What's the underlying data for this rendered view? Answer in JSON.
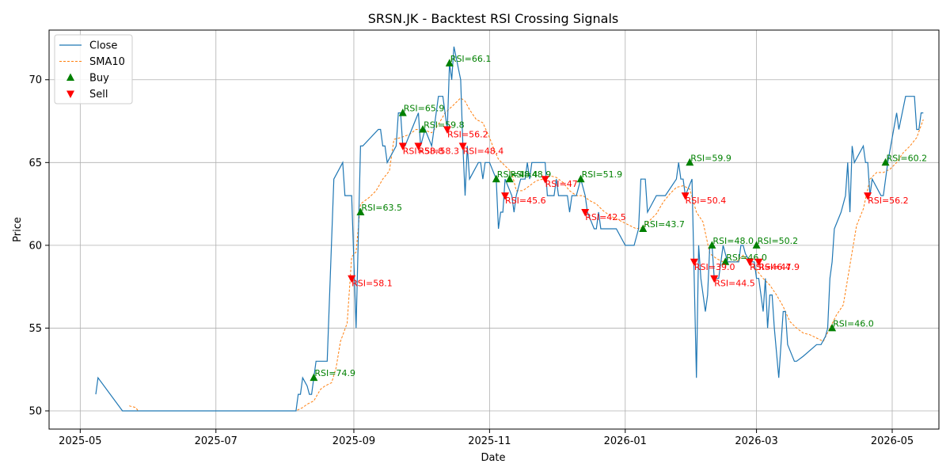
{
  "chart_data": {
    "type": "line",
    "title": "SRSN.JK - Backtest RSI Crossing Signals",
    "xlabel": "Date",
    "ylabel": "Price",
    "x_ticks": [
      "2025-05",
      "2025-07",
      "2025-09",
      "2025-11",
      "2026-01",
      "2026-03",
      "2026-05"
    ],
    "y_ticks": [
      50,
      55,
      60,
      65,
      70
    ],
    "xlim": [
      "2025-04-17",
      "2026-05-22"
    ],
    "ylim": [
      48.9,
      73.0
    ],
    "grid": true,
    "legend_position": "top-left",
    "legend": [
      {
        "label": "Close",
        "style": "line",
        "color": "#1f77b4"
      },
      {
        "label": "SMA10",
        "style": "dashed",
        "color": "#ff7f0e"
      },
      {
        "label": "Buy",
        "style": "triangle-up",
        "color": "#008000"
      },
      {
        "label": "Sell",
        "style": "triangle-down",
        "color": "#ff0000"
      }
    ],
    "close": [
      [
        "2025-05-08",
        51
      ],
      [
        "2025-05-09",
        52
      ],
      [
        "2025-05-20",
        50
      ],
      [
        "2025-08-06",
        50
      ],
      [
        "2025-08-07",
        51
      ],
      [
        "2025-08-08",
        51
      ],
      [
        "2025-08-09",
        52
      ],
      [
        "2025-08-11",
        51.5
      ],
      [
        "2025-08-12",
        51
      ],
      [
        "2025-08-13",
        51
      ],
      [
        "2025-08-14",
        52
      ],
      [
        "2025-08-15",
        53
      ],
      [
        "2025-08-20",
        53
      ],
      [
        "2025-08-23",
        64
      ],
      [
        "2025-08-27",
        65
      ],
      [
        "2025-08-28",
        63
      ],
      [
        "2025-08-31",
        63
      ],
      [
        "2025-09-02",
        55
      ],
      [
        "2025-09-04",
        66
      ],
      [
        "2025-09-05",
        66
      ],
      [
        "2025-09-12",
        67
      ],
      [
        "2025-09-13",
        67
      ],
      [
        "2025-09-14",
        66
      ],
      [
        "2025-09-15",
        66
      ],
      [
        "2025-09-16",
        65
      ],
      [
        "2025-09-20",
        66
      ],
      [
        "2025-09-21",
        68
      ],
      [
        "2025-09-22",
        68
      ],
      [
        "2025-09-23",
        66
      ],
      [
        "2025-09-24",
        66
      ],
      [
        "2025-09-30",
        68
      ],
      [
        "2025-10-01",
        66
      ],
      [
        "2025-10-03",
        67
      ],
      [
        "2025-10-06",
        66
      ],
      [
        "2025-10-09",
        69
      ],
      [
        "2025-10-11",
        69
      ],
      [
        "2025-10-13",
        67
      ],
      [
        "2025-10-14",
        71
      ],
      [
        "2025-10-15",
        70
      ],
      [
        "2025-10-16",
        72
      ],
      [
        "2025-10-19",
        70
      ],
      [
        "2025-10-20",
        66
      ],
      [
        "2025-10-21",
        63
      ],
      [
        "2025-10-22",
        66
      ],
      [
        "2025-10-23",
        64
      ],
      [
        "2025-10-27",
        65
      ],
      [
        "2025-10-28",
        65
      ],
      [
        "2025-10-29",
        64
      ],
      [
        "2025-10-30",
        65
      ],
      [
        "2025-11-01",
        65
      ],
      [
        "2025-11-04",
        64
      ],
      [
        "2025-11-05",
        61
      ],
      [
        "2025-11-06",
        62
      ],
      [
        "2025-11-07",
        62
      ],
      [
        "2025-11-08",
        64
      ],
      [
        "2025-11-11",
        63
      ],
      [
        "2025-11-12",
        62
      ],
      [
        "2025-11-13",
        63
      ],
      [
        "2025-11-15",
        64
      ],
      [
        "2025-11-17",
        64
      ],
      [
        "2025-11-18",
        65
      ],
      [
        "2025-11-19",
        64
      ],
      [
        "2025-11-20",
        65
      ],
      [
        "2025-11-26",
        65
      ],
      [
        "2025-11-27",
        63
      ],
      [
        "2025-11-30",
        63
      ],
      [
        "2025-12-01",
        64
      ],
      [
        "2025-12-02",
        63
      ],
      [
        "2025-12-06",
        63
      ],
      [
        "2025-12-07",
        62
      ],
      [
        "2025-12-08",
        63
      ],
      [
        "2025-12-10",
        63
      ],
      [
        "2025-12-12",
        64
      ],
      [
        "2025-12-14",
        63
      ],
      [
        "2025-12-15",
        62
      ],
      [
        "2025-12-18",
        61
      ],
      [
        "2025-12-19",
        61
      ],
      [
        "2025-12-20",
        62
      ],
      [
        "2025-12-21",
        61
      ],
      [
        "2025-12-28",
        61
      ],
      [
        "2026-01-01",
        60
      ],
      [
        "2026-01-05",
        60
      ],
      [
        "2026-01-07",
        61
      ],
      [
        "2026-01-08",
        64
      ],
      [
        "2026-01-10",
        64
      ],
      [
        "2026-01-11",
        62
      ],
      [
        "2026-01-13",
        62.5
      ],
      [
        "2026-01-15",
        63
      ],
      [
        "2026-01-19",
        63
      ],
      [
        "2026-01-24",
        64
      ],
      [
        "2026-01-25",
        65
      ],
      [
        "2026-01-26",
        64
      ],
      [
        "2026-01-27",
        64
      ],
      [
        "2026-01-28",
        63
      ],
      [
        "2026-01-31",
        64
      ],
      [
        "2026-02-02",
        52
      ],
      [
        "2026-02-03",
        60
      ],
      [
        "2026-02-04",
        58
      ],
      [
        "2026-02-06",
        56
      ],
      [
        "2026-02-07",
        57
      ],
      [
        "2026-02-08",
        60
      ],
      [
        "2026-02-09",
        60
      ],
      [
        "2026-02-10",
        58
      ],
      [
        "2026-02-12",
        58
      ],
      [
        "2026-02-14",
        60
      ],
      [
        "2026-02-16",
        59
      ],
      [
        "2026-02-17",
        59
      ],
      [
        "2026-02-21",
        59
      ],
      [
        "2026-02-22",
        60
      ],
      [
        "2026-02-23",
        60
      ],
      [
        "2026-02-24",
        59.5
      ],
      [
        "2026-02-26",
        59
      ],
      [
        "2026-02-28",
        59
      ],
      [
        "2026-03-01",
        58
      ],
      [
        "2026-03-02",
        58
      ],
      [
        "2026-03-04",
        56
      ],
      [
        "2026-03-05",
        58
      ],
      [
        "2026-03-06",
        55
      ],
      [
        "2026-03-07",
        57
      ],
      [
        "2026-03-08",
        57
      ],
      [
        "2026-03-09",
        55
      ],
      [
        "2026-03-11",
        52
      ],
      [
        "2026-03-13",
        56
      ],
      [
        "2026-03-14",
        56
      ],
      [
        "2026-03-15",
        54
      ],
      [
        "2026-03-18",
        53
      ],
      [
        "2026-03-19",
        53
      ],
      [
        "2026-03-22",
        53.3
      ],
      [
        "2026-03-28",
        54
      ],
      [
        "2026-03-30",
        54
      ],
      [
        "2026-04-01",
        54.5
      ],
      [
        "2026-04-02",
        55
      ],
      [
        "2026-04-03",
        58
      ],
      [
        "2026-04-04",
        59
      ],
      [
        "2026-04-05",
        61
      ],
      [
        "2026-04-08",
        62
      ],
      [
        "2026-04-10",
        63
      ],
      [
        "2026-04-11",
        65
      ],
      [
        "2026-04-12",
        62
      ],
      [
        "2026-04-13",
        66
      ],
      [
        "2026-04-14",
        65
      ],
      [
        "2026-04-18",
        66
      ],
      [
        "2026-04-19",
        65
      ],
      [
        "2026-04-20",
        65
      ],
      [
        "2026-04-21",
        63
      ],
      [
        "2026-04-22",
        64
      ],
      [
        "2026-04-26",
        63
      ],
      [
        "2026-04-27",
        63
      ],
      [
        "2026-04-29",
        65
      ],
      [
        "2026-05-01",
        66.5
      ],
      [
        "2026-05-03",
        68
      ],
      [
        "2026-05-04",
        67
      ],
      [
        "2026-05-07",
        69
      ],
      [
        "2026-05-11",
        69
      ],
      [
        "2026-05-12",
        67
      ],
      [
        "2026-05-13",
        67
      ],
      [
        "2026-05-14",
        68
      ],
      [
        "2026-05-15",
        68
      ]
    ],
    "sma10": [
      [
        "2025-05-23",
        50.3
      ],
      [
        "2025-05-26",
        50.2
      ],
      [
        "2025-05-27",
        50
      ],
      [
        "2025-08-06",
        50
      ],
      [
        "2025-08-09",
        50.2
      ],
      [
        "2025-08-11",
        50.4
      ],
      [
        "2025-08-14",
        50.6
      ],
      [
        "2025-08-17",
        51.3
      ],
      [
        "2025-08-19",
        51.5
      ],
      [
        "2025-08-22",
        51.7
      ],
      [
        "2025-08-24",
        52.6
      ],
      [
        "2025-08-26",
        54.2
      ],
      [
        "2025-08-29",
        55.3
      ],
      [
        "2025-08-31",
        59.3
      ],
      [
        "2025-09-02",
        59.6
      ],
      [
        "2025-09-04",
        62.5
      ],
      [
        "2025-09-08",
        62.9
      ],
      [
        "2025-09-11",
        63.3
      ],
      [
        "2025-09-14",
        64
      ],
      [
        "2025-09-17",
        64.5
      ],
      [
        "2025-09-19",
        66.4
      ],
      [
        "2025-09-22",
        66.5
      ],
      [
        "2025-09-26",
        66.7
      ],
      [
        "2025-09-29",
        67
      ],
      [
        "2025-10-02",
        67
      ],
      [
        "2025-10-06",
        66.8
      ],
      [
        "2025-10-09",
        67.3
      ],
      [
        "2025-10-12",
        68
      ],
      [
        "2025-10-16",
        68.5
      ],
      [
        "2025-10-19",
        68.9
      ],
      [
        "2025-10-21",
        68.7
      ],
      [
        "2025-10-23",
        68.2
      ],
      [
        "2025-10-26",
        67.6
      ],
      [
        "2025-10-29",
        67.4
      ],
      [
        "2025-11-01",
        66.5
      ],
      [
        "2025-11-03",
        65.8
      ],
      [
        "2025-11-05",
        65.2
      ],
      [
        "2025-11-08",
        64.8
      ],
      [
        "2025-11-11",
        64.4
      ],
      [
        "2025-11-13",
        63.3
      ],
      [
        "2025-11-16",
        63.3
      ],
      [
        "2025-11-19",
        63.6
      ],
      [
        "2025-11-22",
        63.9
      ],
      [
        "2025-11-25",
        64
      ],
      [
        "2025-11-28",
        64.2
      ],
      [
        "2025-12-01",
        64.1
      ],
      [
        "2025-12-04",
        63.8
      ],
      [
        "2025-12-07",
        63.3
      ],
      [
        "2025-12-10",
        63
      ],
      [
        "2025-12-13",
        63
      ],
      [
        "2025-12-16",
        62.7
      ],
      [
        "2025-12-19",
        62.5
      ],
      [
        "2025-12-22",
        62.1
      ],
      [
        "2025-12-25",
        61.8
      ],
      [
        "2025-12-28",
        61.6
      ],
      [
        "2025-12-31",
        61.4
      ],
      [
        "2026-01-03",
        61.2
      ],
      [
        "2026-01-06",
        61
      ],
      [
        "2026-01-09",
        61.1
      ],
      [
        "2026-01-12",
        61.5
      ],
      [
        "2026-01-15",
        61.9
      ],
      [
        "2026-01-18",
        62.6
      ],
      [
        "2026-01-21",
        63.1
      ],
      [
        "2026-01-24",
        63.5
      ],
      [
        "2026-01-27",
        63.6
      ],
      [
        "2026-01-30",
        63.4
      ],
      [
        "2026-02-02",
        62
      ],
      [
        "2026-02-05",
        61.4
      ],
      [
        "2026-02-08",
        59.5
      ],
      [
        "2026-02-11",
        59.2
      ],
      [
        "2026-02-14",
        59
      ],
      [
        "2026-02-17",
        59
      ],
      [
        "2026-02-20",
        59
      ],
      [
        "2026-02-23",
        59.4
      ],
      [
        "2026-02-26",
        58.9
      ],
      [
        "2026-03-01",
        58.5
      ],
      [
        "2026-03-04",
        58
      ],
      [
        "2026-03-07",
        57.6
      ],
      [
        "2026-03-10",
        57
      ],
      [
        "2026-03-13",
        56.3
      ],
      [
        "2026-03-16",
        55.4
      ],
      [
        "2026-03-19",
        55
      ],
      [
        "2026-03-22",
        54.7
      ],
      [
        "2026-03-25",
        54.6
      ],
      [
        "2026-03-28",
        54.4
      ],
      [
        "2026-03-31",
        54.2
      ],
      [
        "2026-04-03",
        55
      ],
      [
        "2026-04-06",
        55.8
      ],
      [
        "2026-04-09",
        56.4
      ],
      [
        "2026-04-12",
        58.8
      ],
      [
        "2026-04-15",
        61.2
      ],
      [
        "2026-04-18",
        62.2
      ],
      [
        "2026-04-21",
        64
      ],
      [
        "2026-04-24",
        64.4
      ],
      [
        "2026-04-27",
        64.4
      ],
      [
        "2026-04-30",
        64.6
      ],
      [
        "2026-05-03",
        65
      ],
      [
        "2026-05-06",
        65.6
      ],
      [
        "2026-05-09",
        66
      ],
      [
        "2026-05-12",
        66.5
      ],
      [
        "2026-05-15",
        67.6
      ]
    ],
    "buy_signals": [
      {
        "x": "2025-08-14",
        "y": 52,
        "label": "RSI=74.9"
      },
      {
        "x": "2025-09-04",
        "y": 62,
        "label": "RSI=63.5"
      },
      {
        "x": "2025-09-23",
        "y": 68,
        "label": "RSI=65.9"
      },
      {
        "x": "2025-10-02",
        "y": 67,
        "label": "RSI=59.8"
      },
      {
        "x": "2025-10-14",
        "y": 71,
        "label": "RSI=66.1"
      },
      {
        "x": "2025-11-04",
        "y": 64,
        "label": "RSI=48.4"
      },
      {
        "x": "2025-11-10",
        "y": 64,
        "label": "RSI=48.9"
      },
      {
        "x": "2025-12-12",
        "y": 64,
        "label": "RSI=51.9"
      },
      {
        "x": "2026-01-09",
        "y": 61,
        "label": "RSI=43.7"
      },
      {
        "x": "2026-01-30",
        "y": 65,
        "label": "RSI=59.9"
      },
      {
        "x": "2026-02-09",
        "y": 60,
        "label": "RSI=48.0"
      },
      {
        "x": "2026-02-15",
        "y": 59,
        "label": "RSI=46.0"
      },
      {
        "x": "2026-03-01",
        "y": 60,
        "label": "RSI=50.2"
      },
      {
        "x": "2026-04-04",
        "y": 55,
        "label": "RSI=46.0"
      },
      {
        "x": "2026-04-28",
        "y": 65,
        "label": "RSI=60.2"
      }
    ],
    "sell_signals": [
      {
        "x": "2025-08-31",
        "y": 58,
        "label": "RSI=58.1"
      },
      {
        "x": "2025-09-23",
        "y": 66,
        "label": "RSI=58.8"
      },
      {
        "x": "2025-09-30",
        "y": 66,
        "label": "RSI=58.3"
      },
      {
        "x": "2025-10-13",
        "y": 67,
        "label": "RSI=56.2"
      },
      {
        "x": "2025-10-20",
        "y": 66,
        "label": "RSI=48.4"
      },
      {
        "x": "2025-11-08",
        "y": 63,
        "label": "RSI=45.6"
      },
      {
        "x": "2025-11-26",
        "y": 64,
        "label": "RSI=47"
      },
      {
        "x": "2025-12-14",
        "y": 62,
        "label": "RSI=42.5"
      },
      {
        "x": "2026-01-28",
        "y": 63,
        "label": "RSI=50.4"
      },
      {
        "x": "2026-02-01",
        "y": 59,
        "label": "RSI=39.0"
      },
      {
        "x": "2026-02-10",
        "y": 58,
        "label": "RSI=44.5"
      },
      {
        "x": "2026-02-26",
        "y": 59,
        "label": "RSI=46.4"
      },
      {
        "x": "2026-03-02",
        "y": 59,
        "label": "RSI=47.9"
      },
      {
        "x": "2026-04-20",
        "y": 63,
        "label": "RSI=56.2"
      }
    ]
  }
}
